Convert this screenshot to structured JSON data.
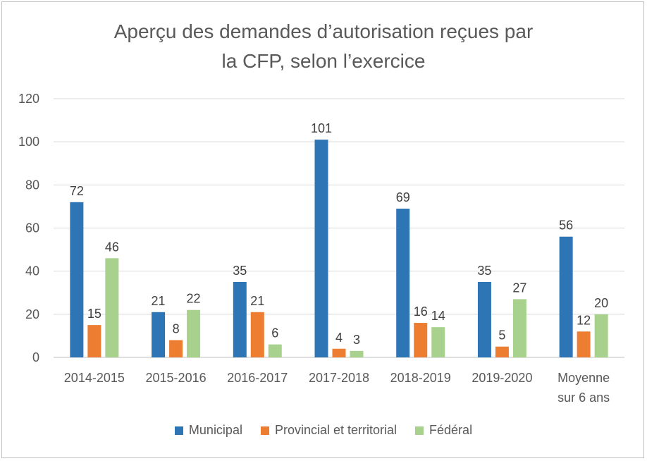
{
  "chart_data": {
    "type": "bar",
    "title": "Aperçu des demandes d’autorisation reçues par\nla CFP, selon l’exercice",
    "categories": [
      "2014-2015",
      "2015-2016",
      "2016-2017",
      "2017-2018",
      "2018-2019",
      "2019-2020",
      "Moyenne\nsur 6 ans"
    ],
    "series": [
      {
        "name": "Municipal",
        "color": "#2e75b6",
        "values": [
          72,
          21,
          35,
          101,
          69,
          35,
          56
        ]
      },
      {
        "name": "Provincial et territorial",
        "color": "#ed7d31",
        "values": [
          15,
          8,
          21,
          4,
          16,
          5,
          12
        ]
      },
      {
        "name": "Fédéral",
        "color": "#a9d18e",
        "values": [
          46,
          22,
          6,
          3,
          14,
          27,
          20
        ]
      }
    ],
    "ylim": [
      0,
      120
    ],
    "yticks": [
      0,
      20,
      40,
      60,
      80,
      100,
      120
    ],
    "grid": true,
    "legend_position": "bottom",
    "xlabel": "",
    "ylabel": ""
  }
}
